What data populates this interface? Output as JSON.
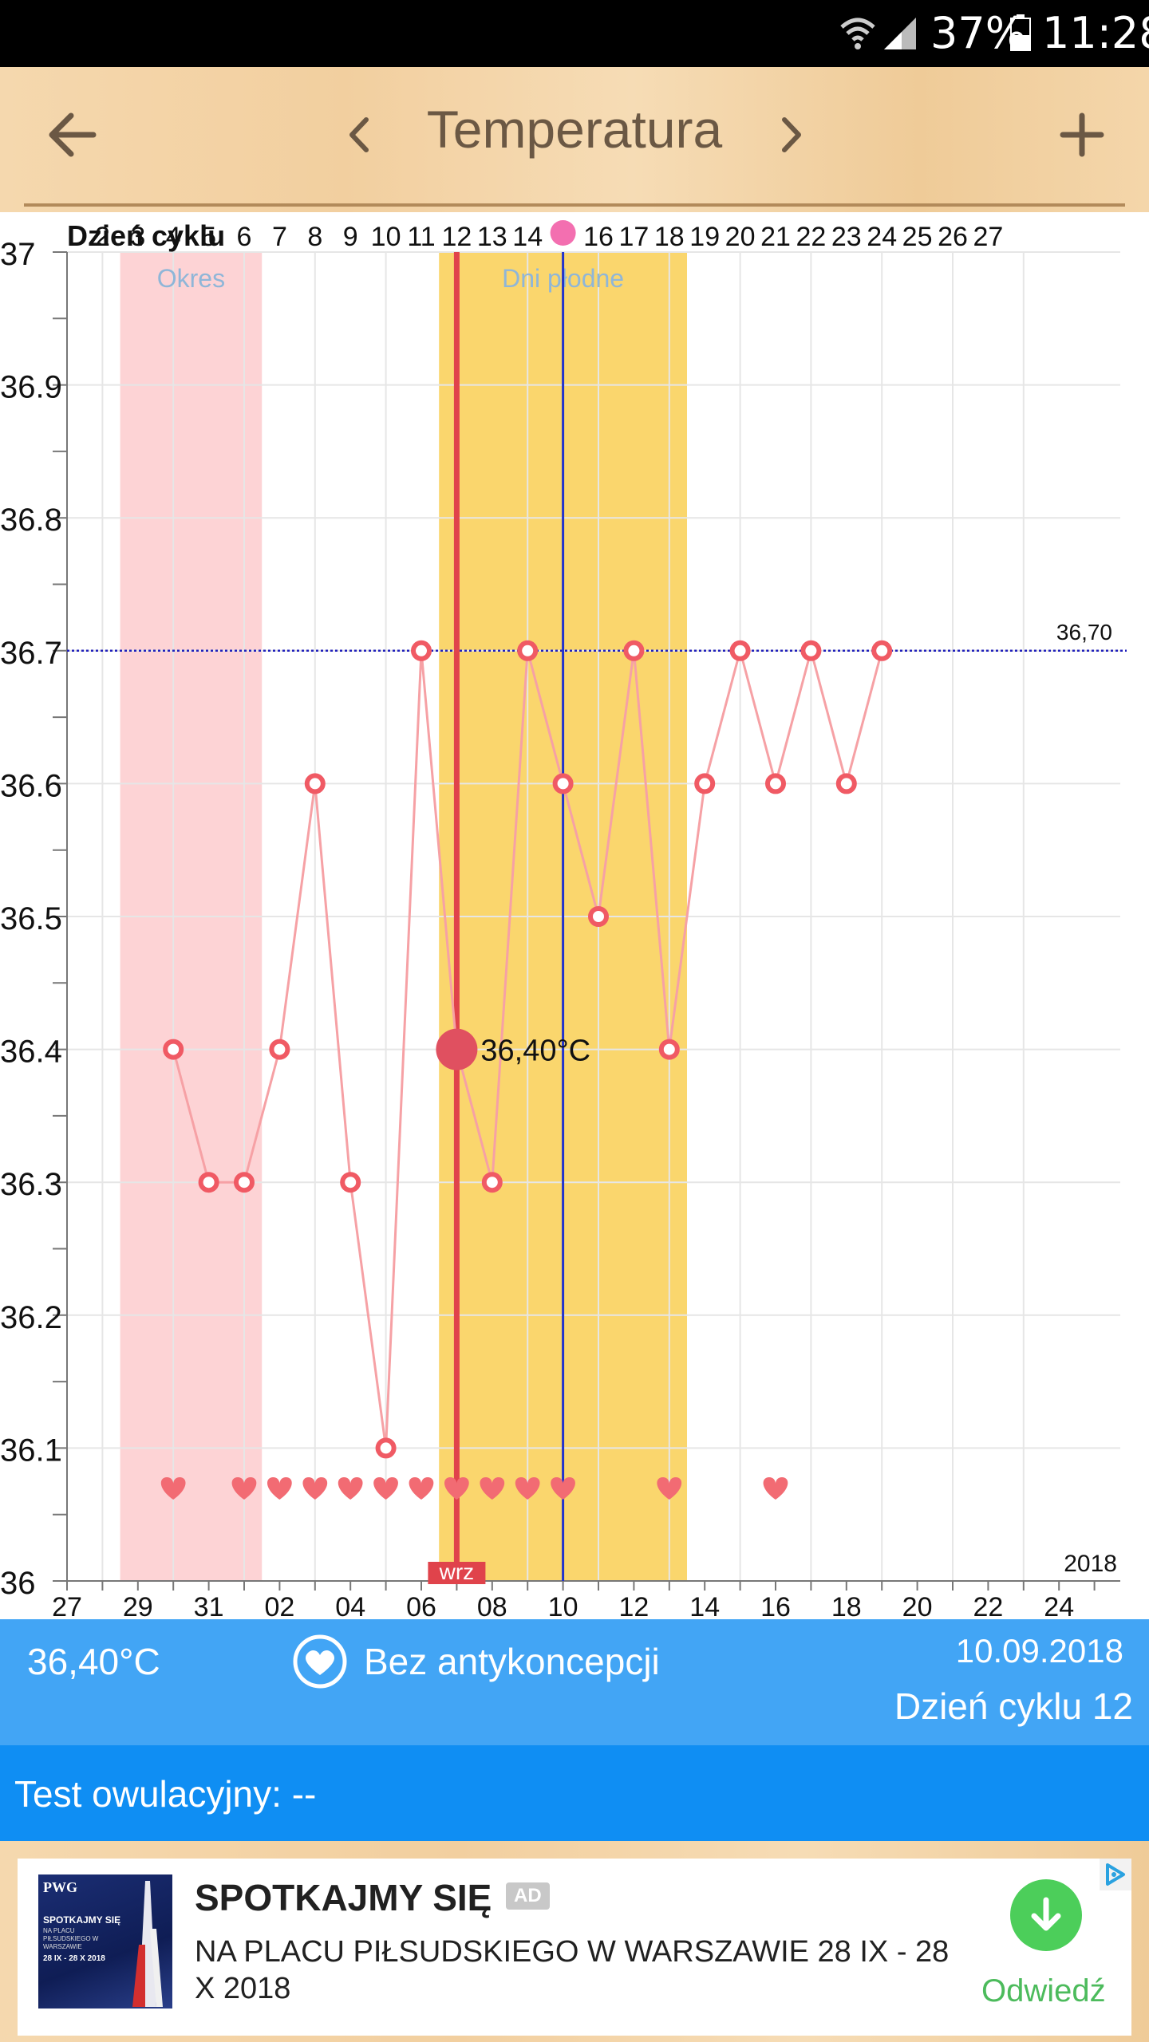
{
  "status_bar": {
    "battery": "37%",
    "time": "11:28",
    "icons": [
      "wifi-icon",
      "signal-icon",
      "battery-icon"
    ]
  },
  "app_bar": {
    "title": "Temperatura",
    "icons": [
      "back-arrow-icon",
      "chevron-left-icon",
      "chevron-right-icon",
      "plus-icon"
    ]
  },
  "chart_data": {
    "type": "line",
    "cycle_label": "Dzień cyklu",
    "cycle_days": [
      "2",
      "3",
      "4",
      "5",
      "6",
      "7",
      "8",
      "9",
      "10",
      "11",
      "12",
      "13",
      "14",
      "",
      "16",
      "17",
      "18",
      "19",
      "20",
      "21",
      "22",
      "23",
      "24",
      "25",
      "26",
      "27"
    ],
    "date_ticks": [
      "27",
      "29",
      "31",
      "02",
      "04",
      "06",
      "08",
      "10",
      "12",
      "14",
      "16",
      "18",
      "20",
      "22",
      "24"
    ],
    "y_ticks": [
      "37",
      "36.9",
      "36.8",
      "36.7",
      "36.6",
      "36.5",
      "36.4",
      "36.3",
      "36.2",
      "36.1",
      "36"
    ],
    "ylim": [
      36,
      37
    ],
    "x_cycle_days": [
      1,
      27
    ],
    "cover_line": {
      "value": 36.7,
      "label": "36,70"
    },
    "year_label": "2018",
    "month_label": "wrz",
    "series": [
      {
        "values": [
          {
            "x": 4,
            "y": 36.4
          },
          {
            "x": 5,
            "y": 36.3
          },
          {
            "x": 6,
            "y": 36.3
          },
          {
            "x": 7,
            "y": 36.4
          },
          {
            "x": 8,
            "y": 36.6
          },
          {
            "x": 9,
            "y": 36.3
          },
          {
            "x": 10,
            "y": 36.1
          },
          {
            "x": 11,
            "y": 36.7
          },
          {
            "x": 12,
            "y": 36.4
          },
          {
            "x": 13,
            "y": 36.3
          },
          {
            "x": 14,
            "y": 36.7
          },
          {
            "x": 15,
            "y": 36.6
          },
          {
            "x": 16,
            "y": 36.5
          },
          {
            "x": 17,
            "y": 36.7
          },
          {
            "x": 18,
            "y": 36.4
          },
          {
            "x": 19,
            "y": 36.6
          },
          {
            "x": 20,
            "y": 36.7
          },
          {
            "x": 21,
            "y": 36.6
          },
          {
            "x": 22,
            "y": 36.7
          },
          {
            "x": 23,
            "y": 36.6
          },
          {
            "x": 24,
            "y": 36.7
          }
        ]
      }
    ],
    "selected": {
      "x": 12,
      "y": 36.4,
      "label": "36,40°C"
    },
    "ovulation_day": 15,
    "intercourse_days": [
      4,
      6,
      7,
      8,
      9,
      10,
      11,
      12,
      13,
      14,
      15,
      18,
      21
    ],
    "bands": [
      {
        "label": "Okres",
        "from": 2.5,
        "to": 6.5,
        "color": "#fdd3d5"
      },
      {
        "label": "Dni płodne",
        "from": 11.5,
        "to": 18.5,
        "color": "#fad66d"
      }
    ],
    "colors": {
      "line": "#f6a1a5",
      "point": "#f05a64",
      "selected": "#e05060",
      "today_line": "#e0434b",
      "ovulation_line": "#2233cc",
      "cover_line": "#2020bb"
    }
  },
  "info": {
    "temperature": "36,40°C",
    "contraception": "Bez antykoncepcji",
    "date": "10.09.2018",
    "cycle_day": "Dzień cyklu 12",
    "icon": "heart-circle-icon"
  },
  "ovulation_test": {
    "label": "Test owulacyjny: --"
  },
  "ad": {
    "title": "SPOTKAJMY SIĘ",
    "badge": "AD",
    "body": "NA PLACU PIŁSUDSKIEGO W WARSZAWIE 28 IX - 28 X 2018",
    "cta": "Odwiedź",
    "image": {
      "logo": "PWG",
      "headline": "SPOTKAJMY SIĘ",
      "subline": "NA PLACU PIŁSUDSKIEGO W WARSZAWIE",
      "dates": "28 IX - 28 X 2018"
    }
  }
}
